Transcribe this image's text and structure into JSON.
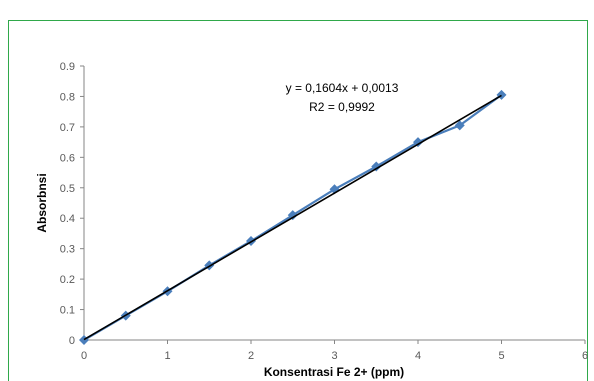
{
  "chart_data": {
    "type": "scatter",
    "title": "",
    "xlabel": "Konsentrasi Fe 2+ (ppm)",
    "ylabel": "Absorbnsi",
    "xlim": [
      0,
      6
    ],
    "ylim": [
      0,
      0.9
    ],
    "x_ticks": [
      "0",
      "1",
      "2",
      "3",
      "4",
      "5",
      "6"
    ],
    "y_ticks": [
      "0",
      "0.1",
      "0.2",
      "0.3",
      "0.4",
      "0.5",
      "0.6",
      "0.7",
      "0.8",
      "0.9"
    ],
    "grid": false,
    "legend": "none",
    "series": [
      {
        "x": [
          0,
          0.5,
          1,
          1.5,
          2,
          2.5,
          3,
          3.5,
          4,
          4.5,
          5
        ],
        "y": [
          0.0,
          0.08,
          0.16,
          0.245,
          0.325,
          0.41,
          0.495,
          0.57,
          0.65,
          0.705,
          0.805
        ],
        "color": "#4a7ebb",
        "marker": "diamond",
        "connected": true
      }
    ],
    "trendline": {
      "slope": 0.1604,
      "intercept": 0.0013,
      "color": "#000000",
      "x_range": [
        0,
        5
      ]
    },
    "annotations": [
      "y = 0,1604x + 0,0013",
      "R2 = 0,9992"
    ]
  },
  "colors": {
    "frame": "#2fa84a",
    "axis": "#868686",
    "series": "#4a7ebb",
    "trendline": "#000000"
  }
}
